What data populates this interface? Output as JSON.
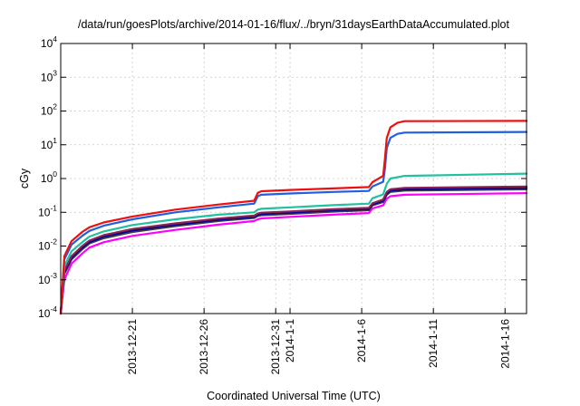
{
  "chart_data": {
    "type": "line",
    "title": "/data/run/goesPlots/archive/2014-01-16/flux/../bryn/31daysEarthDataAccumulated.plot",
    "xlabel": "Coordinated Universal Time (UTC)",
    "ylabel": "cGy",
    "yscale": "log",
    "ylim": [
      0.0001,
      10000
    ],
    "xlim": [
      "2013-12-16",
      "2014-01-17T12:00"
    ],
    "grid": true,
    "x_ticks": [
      {
        "date": "2013-12-21",
        "label": "2013-12-21"
      },
      {
        "date": "2013-12-26",
        "label": "2013-12-26"
      },
      {
        "date": "2013-12-31",
        "label": "2013-12-31"
      },
      {
        "date": "2014-01-01",
        "label": "2014-1-1"
      },
      {
        "date": "2014-01-06",
        "label": "2014-1-6"
      },
      {
        "date": "2014-01-11",
        "label": "2014-1-11"
      },
      {
        "date": "2014-01-16",
        "label": "2014-1-16"
      }
    ],
    "y_ticks": [
      {
        "value": 0.0001,
        "base": "10",
        "exp": "-4"
      },
      {
        "value": 0.001,
        "base": "10",
        "exp": "-3"
      },
      {
        "value": 0.01,
        "base": "10",
        "exp": "-2"
      },
      {
        "value": 0.1,
        "base": "10",
        "exp": "-1"
      },
      {
        "value": 1,
        "base": "10",
        "exp": "0"
      },
      {
        "value": 10,
        "base": "10",
        "exp": "1"
      },
      {
        "value": 100,
        "base": "10",
        "exp": "2"
      },
      {
        "value": 1000,
        "base": "10",
        "exp": "3"
      },
      {
        "value": 10000,
        "base": "10",
        "exp": "4"
      }
    ],
    "series": [
      {
        "color": "#ff00ff",
        "points": [
          [
            "2013-12-16",
            0.0001
          ],
          [
            "2013-12-16T06:00",
            0.001
          ],
          [
            "2013-12-16T18:00",
            0.003
          ],
          [
            "2013-12-17T12:00",
            0.006
          ],
          [
            "2013-12-18",
            0.009
          ],
          [
            "2013-12-19",
            0.013
          ],
          [
            "2013-12-21",
            0.02
          ],
          [
            "2013-12-24",
            0.03
          ],
          [
            "2013-12-27",
            0.043
          ],
          [
            "2013-12-29T12:00",
            0.055
          ],
          [
            "2013-12-29T18:00",
            0.062
          ],
          [
            "2013-12-30",
            0.066
          ],
          [
            "2014-01-01",
            0.073
          ],
          [
            "2014-01-04",
            0.085
          ],
          [
            "2014-01-06T12:00",
            0.095
          ],
          [
            "2014-01-06T18:00",
            0.13
          ],
          [
            "2014-01-07T12:00",
            0.16
          ],
          [
            "2014-01-07T18:00",
            0.25
          ],
          [
            "2014-01-08",
            0.3
          ],
          [
            "2014-01-09",
            0.33
          ],
          [
            "2014-01-17T12:00",
            0.37
          ]
        ]
      },
      {
        "color": "#404040",
        "points": [
          [
            "2013-12-16",
            0.0001
          ],
          [
            "2013-12-16T06:00",
            0.0015
          ],
          [
            "2013-12-16T18:00",
            0.004
          ],
          [
            "2013-12-17T12:00",
            0.008
          ],
          [
            "2013-12-18",
            0.012
          ],
          [
            "2013-12-19",
            0.017
          ],
          [
            "2013-12-21",
            0.026
          ],
          [
            "2013-12-24",
            0.039
          ],
          [
            "2013-12-27",
            0.055
          ],
          [
            "2013-12-29T12:00",
            0.068
          ],
          [
            "2013-12-29T18:00",
            0.078
          ],
          [
            "2013-12-30",
            0.082
          ],
          [
            "2014-01-01",
            0.09
          ],
          [
            "2014-01-04",
            0.105
          ],
          [
            "2014-01-06T12:00",
            0.115
          ],
          [
            "2014-01-06T18:00",
            0.16
          ],
          [
            "2014-01-07T12:00",
            0.2
          ],
          [
            "2014-01-07T18:00",
            0.33
          ],
          [
            "2014-01-08",
            0.4
          ],
          [
            "2014-01-09",
            0.44
          ],
          [
            "2014-01-17T12:00",
            0.48
          ]
        ]
      },
      {
        "color": "#000099",
        "points": [
          [
            "2013-12-16",
            0.0001
          ],
          [
            "2013-12-16T06:00",
            0.0017
          ],
          [
            "2013-12-16T18:00",
            0.0045
          ],
          [
            "2013-12-17T12:00",
            0.009
          ],
          [
            "2013-12-18",
            0.013
          ],
          [
            "2013-12-19",
            0.019
          ],
          [
            "2013-12-21",
            0.029
          ],
          [
            "2013-12-24",
            0.043
          ],
          [
            "2013-12-27",
            0.06
          ],
          [
            "2013-12-29T12:00",
            0.074
          ],
          [
            "2013-12-29T18:00",
            0.085
          ],
          [
            "2013-12-30",
            0.09
          ],
          [
            "2014-01-01",
            0.098
          ],
          [
            "2014-01-04",
            0.115
          ],
          [
            "2014-01-06T12:00",
            0.125
          ],
          [
            "2014-01-06T18:00",
            0.17
          ],
          [
            "2014-01-07T12:00",
            0.22
          ],
          [
            "2014-01-07T18:00",
            0.36
          ],
          [
            "2014-01-08",
            0.44
          ],
          [
            "2014-01-09",
            0.48
          ],
          [
            "2014-01-17T12:00",
            0.53
          ]
        ]
      },
      {
        "color": "#8b2252",
        "points": [
          [
            "2013-12-16",
            0.0001
          ],
          [
            "2013-12-16T06:00",
            0.0019
          ],
          [
            "2013-12-16T18:00",
            0.005
          ],
          [
            "2013-12-17T12:00",
            0.01
          ],
          [
            "2013-12-18",
            0.0145
          ],
          [
            "2013-12-19",
            0.021
          ],
          [
            "2013-12-21",
            0.032
          ],
          [
            "2013-12-24",
            0.047
          ],
          [
            "2013-12-27",
            0.065
          ],
          [
            "2013-12-29T12:00",
            0.08
          ],
          [
            "2013-12-29T18:00",
            0.092
          ],
          [
            "2013-12-30",
            0.097
          ],
          [
            "2014-01-01",
            0.106
          ],
          [
            "2014-01-04",
            0.123
          ],
          [
            "2014-01-06T12:00",
            0.135
          ],
          [
            "2014-01-06T18:00",
            0.185
          ],
          [
            "2014-01-07T12:00",
            0.24
          ],
          [
            "2014-01-07T18:00",
            0.4
          ],
          [
            "2014-01-08",
            0.48
          ],
          [
            "2014-01-09",
            0.53
          ],
          [
            "2014-01-17T12:00",
            0.58
          ]
        ]
      },
      {
        "color": "#20c0a0",
        "points": [
          [
            "2013-12-16",
            0.0001
          ],
          [
            "2013-12-16T06:00",
            0.0025
          ],
          [
            "2013-12-16T18:00",
            0.007
          ],
          [
            "2013-12-17T12:00",
            0.013
          ],
          [
            "2013-12-18",
            0.019
          ],
          [
            "2013-12-19",
            0.027
          ],
          [
            "2013-12-21",
            0.042
          ],
          [
            "2013-12-24",
            0.062
          ],
          [
            "2013-12-27",
            0.085
          ],
          [
            "2013-12-29T12:00",
            0.1
          ],
          [
            "2013-12-29T18:00",
            0.12
          ],
          [
            "2013-12-30",
            0.127
          ],
          [
            "2014-01-01",
            0.14
          ],
          [
            "2014-01-04",
            0.162
          ],
          [
            "2014-01-06T12:00",
            0.18
          ],
          [
            "2014-01-06T18:00",
            0.26
          ],
          [
            "2014-01-07T12:00",
            0.34
          ],
          [
            "2014-01-07T18:00",
            0.7
          ],
          [
            "2014-01-08",
            1.0
          ],
          [
            "2014-01-09",
            1.2
          ],
          [
            "2014-01-17T12:00",
            1.4
          ]
        ]
      },
      {
        "color": "#2060e0",
        "points": [
          [
            "2013-12-16",
            0.0001
          ],
          [
            "2013-12-16T06:00",
            0.004
          ],
          [
            "2013-12-16T18:00",
            0.011
          ],
          [
            "2013-12-17T12:00",
            0.02
          ],
          [
            "2013-12-18",
            0.028
          ],
          [
            "2013-12-19",
            0.04
          ],
          [
            "2013-12-21",
            0.062
          ],
          [
            "2013-12-24",
            0.1
          ],
          [
            "2013-12-27",
            0.14
          ],
          [
            "2013-12-29T12:00",
            0.18
          ],
          [
            "2013-12-29T18:00",
            0.3
          ],
          [
            "2013-12-30",
            0.33
          ],
          [
            "2014-01-01",
            0.36
          ],
          [
            "2014-01-04",
            0.4
          ],
          [
            "2014-01-06T12:00",
            0.43
          ],
          [
            "2014-01-06T18:00",
            0.58
          ],
          [
            "2014-01-07T12:00",
            0.8
          ],
          [
            "2014-01-07T15:00",
            2.0
          ],
          [
            "2014-01-07T18:00",
            8.0
          ],
          [
            "2014-01-08",
            16.0
          ],
          [
            "2014-01-08T12:00",
            21.0
          ],
          [
            "2014-01-09",
            23.0
          ],
          [
            "2014-01-17T12:00",
            24.0
          ]
        ]
      },
      {
        "color": "#ee1010",
        "points": [
          [
            "2013-12-16",
            0.0001
          ],
          [
            "2013-12-16T06:00",
            0.005
          ],
          [
            "2013-12-16T18:00",
            0.014
          ],
          [
            "2013-12-17T12:00",
            0.026
          ],
          [
            "2013-12-18",
            0.036
          ],
          [
            "2013-12-19",
            0.05
          ],
          [
            "2013-12-21",
            0.075
          ],
          [
            "2013-12-24",
            0.12
          ],
          [
            "2013-12-27",
            0.17
          ],
          [
            "2013-12-29T12:00",
            0.22
          ],
          [
            "2013-12-29T18:00",
            0.38
          ],
          [
            "2013-12-30",
            0.42
          ],
          [
            "2014-01-01",
            0.46
          ],
          [
            "2014-01-04",
            0.51
          ],
          [
            "2014-01-06T12:00",
            0.56
          ],
          [
            "2014-01-06T18:00",
            0.78
          ],
          [
            "2014-01-07T12:00",
            1.2
          ],
          [
            "2014-01-07T15:00",
            4.0
          ],
          [
            "2014-01-07T18:00",
            16.0
          ],
          [
            "2014-01-08",
            33.0
          ],
          [
            "2014-01-08T12:00",
            45.0
          ],
          [
            "2014-01-09",
            50.0
          ],
          [
            "2014-01-17T12:00",
            51.0
          ]
        ]
      }
    ]
  }
}
